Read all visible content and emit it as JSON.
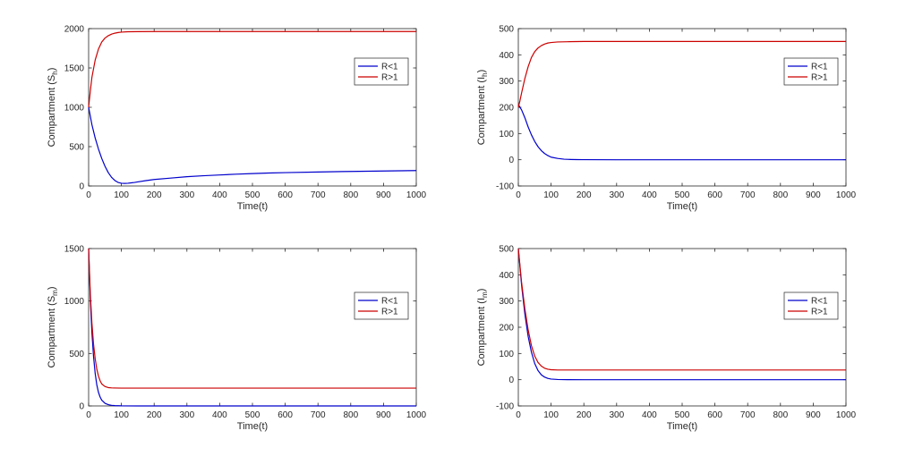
{
  "chart_data": [
    {
      "type": "line",
      "ylabel": "Compartment (S",
      "ylabel_sub": "h",
      "ylabel_close": ")",
      "xlabel": "Time(t)",
      "xlim": [
        0,
        1000
      ],
      "ylim": [
        0,
        2000
      ],
      "xticks": [
        0,
        100,
        200,
        300,
        400,
        500,
        600,
        700,
        800,
        900,
        1000
      ],
      "yticks": [
        0,
        500,
        1000,
        1500,
        2000
      ],
      "legend_position": "top-right",
      "series": [
        {
          "name": "R<1",
          "color": "#0000cc",
          "x": [
            0,
            10,
            20,
            30,
            40,
            50,
            60,
            70,
            80,
            90,
            100,
            110,
            120,
            130,
            140,
            150,
            175,
            200,
            250,
            300,
            350,
            400,
            450,
            500,
            550,
            600,
            700,
            800,
            900,
            1000
          ],
          "y": [
            1000,
            780,
            610,
            470,
            350,
            250,
            170,
            110,
            70,
            45,
            35,
            33,
            35,
            40,
            45,
            52,
            68,
            82,
            100,
            118,
            130,
            140,
            150,
            158,
            165,
            170,
            178,
            185,
            190,
            196
          ]
        },
        {
          "name": "R>1",
          "color": "#cc0000",
          "x": [
            0,
            5,
            10,
            20,
            30,
            40,
            50,
            60,
            70,
            80,
            90,
            100,
            120,
            150,
            200,
            300,
            400,
            500,
            600,
            700,
            800,
            900,
            1000
          ],
          "y": [
            1000,
            1200,
            1380,
            1600,
            1740,
            1830,
            1880,
            1910,
            1930,
            1942,
            1950,
            1955,
            1960,
            1962,
            1963,
            1963,
            1963,
            1963,
            1963,
            1963,
            1963,
            1963,
            1963
          ]
        }
      ],
      "legend": [
        "R<1",
        "R>1"
      ]
    },
    {
      "type": "line",
      "ylabel": "Compartment (I",
      "ylabel_sub": "h",
      "ylabel_close": ")",
      "xlabel": "Time(t)",
      "xlim": [
        0,
        1000
      ],
      "ylim": [
        -100,
        500
      ],
      "xticks": [
        0,
        100,
        200,
        300,
        400,
        500,
        600,
        700,
        800,
        900,
        1000
      ],
      "yticks": [
        -100,
        0,
        100,
        200,
        300,
        400,
        500
      ],
      "legend_position": "top-right",
      "series": [
        {
          "name": "R<1",
          "color": "#0000cc",
          "x": [
            0,
            10,
            20,
            30,
            40,
            50,
            60,
            70,
            80,
            90,
            100,
            120,
            140,
            160,
            180,
            200,
            300,
            400,
            500,
            600,
            700,
            800,
            900,
            1000
          ],
          "y": [
            210,
            190,
            160,
            125,
            95,
            70,
            50,
            35,
            24,
            16,
            10,
            5,
            2,
            1,
            0.5,
            0.3,
            0,
            0,
            0,
            0,
            0,
            0,
            0,
            0
          ]
        },
        {
          "name": "R>1",
          "color": "#cc0000",
          "x": [
            0,
            5,
            10,
            20,
            30,
            40,
            50,
            60,
            70,
            80,
            90,
            100,
            120,
            150,
            200,
            300,
            400,
            500,
            600,
            700,
            800,
            900,
            1000
          ],
          "y": [
            200,
            225,
            255,
            310,
            355,
            390,
            412,
            426,
            435,
            441,
            445,
            447,
            449,
            450,
            451,
            451,
            451,
            451,
            451,
            451,
            451,
            451,
            451
          ]
        }
      ],
      "legend": [
        "R<1",
        "R>1"
      ]
    },
    {
      "type": "line",
      "ylabel": "Compartment (S",
      "ylabel_sub": "m",
      "ylabel_close": ")",
      "xlabel": "Time(t)",
      "xlim": [
        0,
        1000
      ],
      "ylim": [
        0,
        1500
      ],
      "xticks": [
        0,
        100,
        200,
        300,
        400,
        500,
        600,
        700,
        800,
        900,
        1000
      ],
      "yticks": [
        0,
        500,
        1000,
        1500
      ],
      "legend_position": "top-right",
      "series": [
        {
          "name": "R<1",
          "color": "#0000cc",
          "x": [
            0,
            5,
            10,
            15,
            20,
            25,
            30,
            35,
            40,
            50,
            60,
            70,
            80,
            100,
            150,
            200,
            300,
            500,
            700,
            1000
          ],
          "y": [
            1500,
            1030,
            700,
            470,
            310,
            200,
            130,
            85,
            55,
            25,
            12,
            6,
            3,
            1,
            0,
            0,
            0,
            0,
            0,
            0
          ]
        },
        {
          "name": "R>1",
          "color": "#cc0000",
          "x": [
            0,
            5,
            10,
            15,
            20,
            25,
            30,
            35,
            40,
            50,
            60,
            70,
            80,
            100,
            150,
            200,
            300,
            500,
            700,
            1000
          ],
          "y": [
            1500,
            1080,
            790,
            590,
            450,
            350,
            285,
            240,
            210,
            185,
            175,
            172,
            171,
            170,
            170,
            170,
            170,
            170,
            170,
            170
          ]
        }
      ],
      "legend": [
        "R<1",
        "R>1"
      ]
    },
    {
      "type": "line",
      "ylabel": "Compartment (I",
      "ylabel_sub": "m",
      "ylabel_close": ")",
      "xlabel": "Time(t)",
      "xlim": [
        0,
        1000
      ],
      "ylim": [
        -100,
        500
      ],
      "xticks": [
        0,
        100,
        200,
        300,
        400,
        500,
        600,
        700,
        800,
        900,
        1000
      ],
      "yticks": [
        -100,
        0,
        100,
        200,
        300,
        400,
        500
      ],
      "legend_position": "top-right",
      "series": [
        {
          "name": "R<1",
          "color": "#0000cc",
          "x": [
            0,
            10,
            20,
            30,
            40,
            50,
            60,
            70,
            80,
            90,
            100,
            120,
            150,
            200,
            300,
            500,
            700,
            1000
          ],
          "y": [
            500,
            360,
            250,
            165,
            105,
            62,
            35,
            19,
            10,
            5,
            2.5,
            0.8,
            0.2,
            0,
            0,
            0,
            0,
            0
          ]
        },
        {
          "name": "R>1",
          "color": "#cc0000",
          "x": [
            0,
            10,
            20,
            30,
            40,
            50,
            60,
            70,
            80,
            90,
            100,
            120,
            150,
            200,
            300,
            500,
            700,
            1000
          ],
          "y": [
            500,
            370,
            270,
            190,
            130,
            90,
            66,
            52,
            44,
            40,
            38,
            37,
            37,
            37,
            37,
            37,
            37,
            37
          ]
        }
      ],
      "legend": [
        "R<1",
        "R>1"
      ]
    }
  ]
}
